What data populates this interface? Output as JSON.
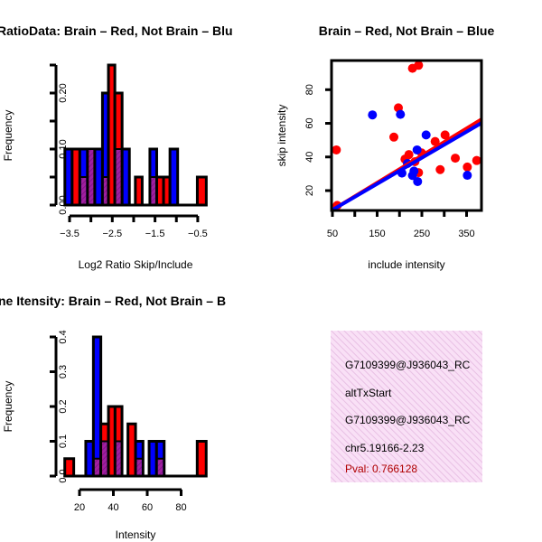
{
  "colors": {
    "red": "#ff0000",
    "blue": "#0000ff",
    "overlap": "#a020a0",
    "pval": "#b00000",
    "box": "#f7d7f2"
  },
  "chart_data": [
    {
      "type": "bar",
      "title": "RatioData: Brain – Red, Not Brain – Blu",
      "xlabel": "Log2 Ratio Skip/Include",
      "ylabel": "Frequency",
      "xticks": [
        -3.5,
        -3.0,
        -2.5,
        -2.0,
        -1.5,
        -1.0,
        -0.5
      ],
      "xtick_labels": [
        "-3.5",
        "-2.5",
        "-1.5",
        "-0.5"
      ],
      "xtick_label_values": [
        -3.5,
        -2.5,
        -1.5,
        -0.5
      ],
      "yticks": [
        0,
        0.05,
        0.1,
        0.15,
        0.2,
        0.25
      ],
      "ytick_labels": [
        "0.00",
        "0.10",
        "0.20"
      ],
      "ytick_label_values": [
        0,
        0.1,
        0.2
      ],
      "xlim": [
        -3.61,
        -0.3
      ],
      "ylim": [
        0,
        0.25
      ],
      "bars": [
        {
          "x0": -3.61,
          "x1": -3.44,
          "value": 0.1,
          "series": "blue",
          "overlap": 0
        },
        {
          "x0": -3.44,
          "x1": -3.26,
          "value": 0.1,
          "series": "red",
          "overlap": 0
        },
        {
          "x0": -3.26,
          "x1": -3.08,
          "value": 0.1,
          "series": "blue",
          "overlap": 0.05
        },
        {
          "x0": -3.08,
          "x1": -2.91,
          "value": 0.1,
          "series": "red",
          "overlap": 0.1
        },
        {
          "x0": -2.91,
          "x1": -2.73,
          "value": 0.1,
          "series": "blue",
          "overlap": 0
        },
        {
          "x0": -2.73,
          "x1": -2.59,
          "value": 0.2,
          "series": "blue",
          "overlap": 0.05
        },
        {
          "x0": -2.59,
          "x1": -2.44,
          "value": 0.25,
          "series": "red",
          "overlap": 0
        },
        {
          "x0": -2.44,
          "x1": -2.27,
          "value": 0.2,
          "series": "red",
          "overlap": 0.1
        },
        {
          "x0": -2.27,
          "x1": -2.1,
          "value": 0.1,
          "series": "blue",
          "overlap": 0
        },
        {
          "x0": -1.96,
          "x1": -1.8,
          "value": 0.05,
          "series": "red",
          "overlap": 0
        },
        {
          "x0": -1.62,
          "x1": -1.46,
          "value": 0.1,
          "series": "blue",
          "overlap": 0.05
        },
        {
          "x0": -1.46,
          "x1": -1.3,
          "value": 0.05,
          "series": "red",
          "overlap": 0
        },
        {
          "x0": -1.3,
          "x1": -1.15,
          "value": 0.05,
          "series": "red",
          "overlap": 0
        },
        {
          "x0": -1.15,
          "x1": -0.97,
          "value": 0.1,
          "series": "blue",
          "overlap": 0
        },
        {
          "x0": -0.51,
          "x1": -0.3,
          "value": 0.05,
          "series": "red",
          "overlap": 0
        }
      ]
    },
    {
      "type": "scatter",
      "title": "Brain – Red, Not Brain – Blue",
      "xlabel": "include intensity",
      "ylabel": "skip intensity",
      "xticks": [
        50,
        100,
        150,
        200,
        250,
        300,
        350
      ],
      "xtick_labels": [
        "50",
        "150",
        "250",
        "350"
      ],
      "xtick_label_values": [
        50,
        150,
        250,
        350
      ],
      "yticks": [
        20,
        40,
        60,
        80
      ],
      "ytick_labels": [
        "20",
        "40",
        "60",
        "80"
      ],
      "xlim": [
        48,
        383
      ],
      "ylim": [
        8.2,
        97.3
      ],
      "series": [
        {
          "name": "Brain",
          "color": "red",
          "points": [
            [
              58.8,
              44.2
            ],
            [
              60.7,
              11.2
            ],
            [
              229,
              92.7
            ],
            [
              242.6,
              94.5
            ],
            [
              197.5,
              69.2
            ],
            [
              187.4,
              51.8
            ],
            [
              212.3,
              38.7
            ],
            [
              221,
              41.4
            ],
            [
              234.5,
              37.2
            ],
            [
              242.6,
              30.7
            ],
            [
              249.3,
              42.4
            ],
            [
              279.7,
              49.2
            ],
            [
              301.9,
              53.1
            ],
            [
              291,
              32.5
            ],
            [
              324.8,
              39.3
            ],
            [
              351.7,
              34.0
            ],
            [
              372.6,
              37.9
            ]
          ],
          "fit": {
            "intercept": 0.45,
            "slope": 0.1615
          }
        },
        {
          "name": "Not Brain",
          "color": "blue",
          "points": [
            [
              139.5,
              65.0
            ],
            [
              202.1,
              65.3
            ],
            [
              259.5,
              53.1
            ],
            [
              239.3,
              44.2
            ],
            [
              217.7,
              36.1
            ],
            [
              232.4,
              31.6
            ],
            [
              205.5,
              30.4
            ],
            [
              229,
              29.0
            ],
            [
              240.5,
              25.4
            ],
            [
              351.7,
              29.1
            ]
          ],
          "fit": {
            "intercept": 0.76,
            "slope": 0.155
          }
        }
      ]
    },
    {
      "type": "bar",
      "title": "ne Itensity: Brain – Red, Not Brain – B",
      "xlabel": "Intensity",
      "ylabel": "Frequency",
      "xticks": [
        20,
        40,
        60,
        80
      ],
      "xtick_labels": [
        "20",
        "40",
        "60",
        "80"
      ],
      "xtick_label_values": [
        20,
        40,
        60,
        80
      ],
      "yticks": [
        0,
        0.1,
        0.2,
        0.3,
        0.4
      ],
      "ytick_labels": [
        "0.0",
        "0.1",
        "0.2",
        "0.3",
        "0.4"
      ],
      "ytick_label_values": [
        0,
        0.1,
        0.2,
        0.3,
        0.4
      ],
      "xlim": [
        11.3,
        94.8
      ],
      "ylim": [
        0,
        0.4
      ],
      "bars": [
        {
          "x0": 11.3,
          "x1": 16.6,
          "value": 0.05,
          "series": "red",
          "overlap": 0
        },
        {
          "x0": 23.7,
          "x1": 28.2,
          "value": 0.1,
          "series": "blue",
          "overlap": 0
        },
        {
          "x0": 28.2,
          "x1": 32.6,
          "value": 0.4,
          "series": "blue",
          "overlap": 0.05
        },
        {
          "x0": 32.6,
          "x1": 37.1,
          "value": 0.15,
          "series": "red",
          "overlap": 0.1
        },
        {
          "x0": 37.1,
          "x1": 41.0,
          "value": 0.2,
          "series": "red",
          "overlap": 0
        },
        {
          "x0": 41.0,
          "x1": 45.1,
          "value": 0.2,
          "series": "red",
          "overlap": 0.1
        },
        {
          "x0": 48.6,
          "x1": 53.1,
          "value": 0.15,
          "series": "red",
          "overlap": 0
        },
        {
          "x0": 53.1,
          "x1": 57.5,
          "value": 0.1,
          "series": "blue",
          "overlap": 0.05
        },
        {
          "x0": 61.1,
          "x1": 65.5,
          "value": 0.1,
          "series": "blue",
          "overlap": 0
        },
        {
          "x0": 65.5,
          "x1": 70.0,
          "value": 0.1,
          "series": "blue",
          "overlap": 0.05
        },
        {
          "x0": 89.5,
          "x1": 94.8,
          "value": 0.1,
          "series": "red",
          "overlap": 0
        }
      ]
    }
  ],
  "info_box": {
    "lines": [
      "G7109399@J936043_RC",
      "altTxStart",
      "G7109399@J936043_RC",
      "chr5.19166-2.23"
    ],
    "pval": "Pval: 0.766128"
  }
}
